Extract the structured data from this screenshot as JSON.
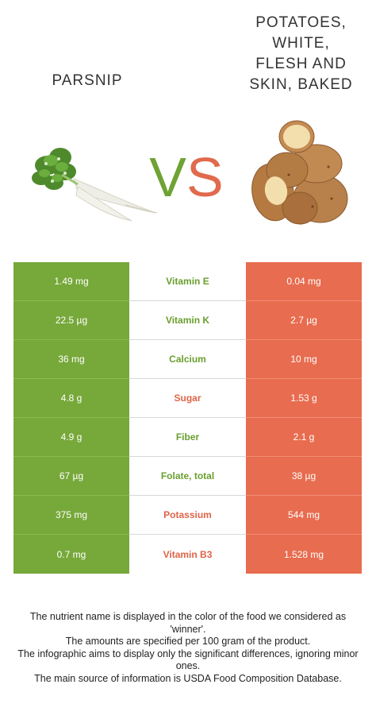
{
  "left_food": {
    "name": "PARSNIP",
    "image_icon": "parsnip-image"
  },
  "right_food": {
    "name_lines": [
      "POTATOES,",
      "WHITE,",
      "FLESH AND",
      "SKIN, BAKED"
    ],
    "image_icon": "potatoes-image"
  },
  "vs": {
    "v": "V",
    "s": "S"
  },
  "colors": {
    "green": "#77a83a",
    "red": "#e86c4f",
    "green_text": "#6a9f2f",
    "red_text": "#de6448"
  },
  "rows": [
    {
      "left": "1.49 mg",
      "nutrient": "Vitamin E",
      "right": "0.04 mg",
      "winner": "left"
    },
    {
      "left": "22.5 µg",
      "nutrient": "Vitamin K",
      "right": "2.7 µg",
      "winner": "left"
    },
    {
      "left": "36 mg",
      "nutrient": "Calcium",
      "right": "10 mg",
      "winner": "left"
    },
    {
      "left": "4.8 g",
      "nutrient": "Sugar",
      "right": "1.53 g",
      "winner": "right"
    },
    {
      "left": "4.9 g",
      "nutrient": "Fiber",
      "right": "2.1 g",
      "winner": "left"
    },
    {
      "left": "67 µg",
      "nutrient": "Folate, total",
      "right": "38 µg",
      "winner": "left"
    },
    {
      "left": "375 mg",
      "nutrient": "Potassium",
      "right": "544 mg",
      "winner": "right"
    },
    {
      "left": "0.7 mg",
      "nutrient": "Vitamin B3",
      "right": "1.528 mg",
      "winner": "right"
    }
  ],
  "footnote": [
    "The nutrient name is displayed in the color of the food we considered as 'winner'.",
    "The amounts are specified per 100 gram of the product.",
    "The infographic aims to display only the significant differences, ignoring minor ones.",
    "The main source of information is USDA Food Composition Database."
  ]
}
